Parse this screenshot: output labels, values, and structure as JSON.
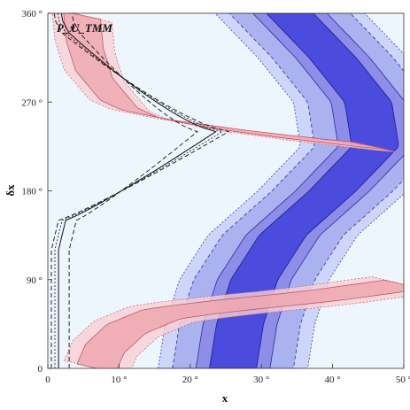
{
  "chart_data": {
    "type": "area",
    "title": "",
    "xlabel": "x",
    "ylabel": "δx",
    "xlim": [
      0,
      50
    ],
    "ylim": [
      0,
      360
    ],
    "x_ticks": [
      0,
      10,
      20,
      30,
      40,
      50
    ],
    "y_ticks": [
      0,
      90,
      180,
      270,
      360
    ],
    "x_tick_labels": [
      "0",
      "10 °",
      "20 °",
      "30 °",
      "40 °",
      "50 °"
    ],
    "y_tick_labels": [
      "0",
      "90 °",
      "180 °",
      "270 °",
      "360 °"
    ],
    "grid": false,
    "background_region": {
      "color": "#eef6fd"
    },
    "curve_labels": [
      "P_x",
      "U_TMM"
    ],
    "series": [
      {
        "name": "P_x",
        "kind": "red bands",
        "color": "#e8707a",
        "upper_branch": {
          "y": [
            360,
            330,
            300,
            270,
            260,
            250,
            240,
            230,
            225
          ],
          "x": [
            4.8,
            5.2,
            6.5,
            10,
            13,
            20,
            30,
            42,
            50
          ]
        },
        "lower_branch": {
          "y": [
            0,
            20,
            40,
            55,
            60,
            65,
            70,
            75,
            85
          ],
          "x": [
            6.8,
            8,
            11,
            16,
            21,
            27,
            34,
            40,
            50
          ]
        }
      },
      {
        "name": "U_TMM",
        "kind": "black contours",
        "color": "#000000",
        "x_left_edge": [
          0.5,
          1,
          1.5,
          3
        ],
        "turning_point": {
          "x": 23.6,
          "y": 240
        },
        "y_range": [
          0,
          360
        ]
      },
      {
        "name": "",
        "kind": "blue bands",
        "color": "#3333dd",
        "center": {
          "y": [
            0,
            45,
            90,
            135,
            180,
            225,
            270,
            315,
            360
          ],
          "x": [
            26,
            27,
            29,
            33,
            40,
            46,
            45,
            40,
            34
          ]
        }
      }
    ]
  }
}
